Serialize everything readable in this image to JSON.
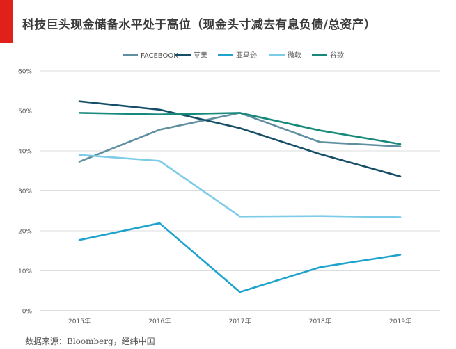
{
  "header": {
    "title": "科技巨头现金储备水平处于高位（现金头寸减去有息负债/总资产）",
    "accent_color": "#e0201b"
  },
  "footer": {
    "source": "数据来源：Bloomberg，经纬中国"
  },
  "chart_data": {
    "type": "line",
    "title": "科技巨头现金储备水平处于高位（现金头寸减去有息负债/总资产）",
    "xlabel": "",
    "ylabel": "",
    "categories": [
      "2015年",
      "2016年",
      "2017年",
      "2018年",
      "2019年"
    ],
    "ylim": [
      0,
      60
    ],
    "yticks": [
      0,
      10,
      20,
      30,
      40,
      50,
      60
    ],
    "ytick_labels": [
      "0%",
      "10%",
      "20%",
      "30%",
      "40%",
      "50%",
      "60%"
    ],
    "grid": true,
    "legend_position": "top",
    "series": [
      {
        "name": "FACEBOOK",
        "color": "#5f8fa0",
        "values": [
          37.3,
          45.3,
          49.5,
          42.2,
          41.1
        ]
      },
      {
        "name": "苹果",
        "color": "#154e66",
        "values": [
          52.4,
          50.3,
          45.7,
          39.2,
          33.6
        ]
      },
      {
        "name": "亚马逊",
        "color": "#1fa3cc",
        "values": [
          17.7,
          21.9,
          4.7,
          10.9,
          14.0
        ]
      },
      {
        "name": "微软",
        "color": "#7ccbe8",
        "values": [
          39.0,
          37.5,
          23.6,
          23.7,
          23.4
        ]
      },
      {
        "name": "谷歌",
        "color": "#17897b",
        "values": [
          49.5,
          49.1,
          49.5,
          45.1,
          41.7
        ]
      }
    ]
  }
}
